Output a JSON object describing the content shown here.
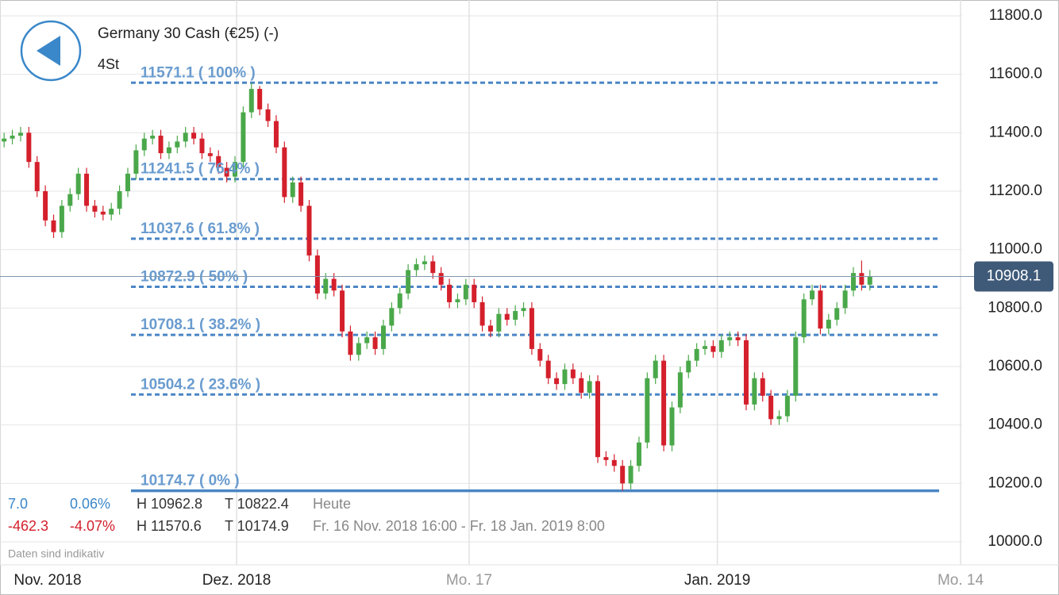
{
  "chart_data": {
    "type": "candlestick",
    "title": "Germany 30 Cash (€25) (-)",
    "subtitle": "4St",
    "up_color": "#4aa84a",
    "down_color": "#d4202c",
    "fib_color": "#4a86c5",
    "grid": true,
    "x": [
      0,
      1,
      2,
      3,
      4,
      5,
      6,
      7,
      8,
      9,
      10,
      11,
      12,
      13,
      14,
      15,
      16,
      17,
      18,
      19,
      20,
      21,
      22,
      23,
      24,
      25,
      26,
      27,
      28,
      29,
      30,
      31,
      32,
      33,
      34,
      35,
      36,
      37,
      38,
      39,
      40,
      41,
      42,
      43,
      44,
      45,
      46,
      47,
      48,
      49,
      50,
      51,
      52,
      53,
      54,
      55,
      56,
      57,
      58,
      59,
      60,
      61,
      62,
      63,
      64,
      65,
      66,
      67,
      68,
      69,
      70,
      71,
      72,
      73,
      74,
      75,
      76,
      77,
      78,
      79,
      80,
      81,
      82,
      83,
      84,
      85,
      86,
      87,
      88,
      89,
      90,
      91,
      92,
      93,
      94,
      95,
      96,
      97,
      98,
      99,
      100,
      101,
      102,
      103,
      104,
      105
    ],
    "open": [
      11370,
      11380,
      11390,
      11400,
      11300,
      11200,
      11100,
      11060,
      11150,
      11190,
      11260,
      11150,
      11130,
      11120,
      11140,
      11200,
      11260,
      11340,
      11380,
      11390,
      11330,
      11350,
      11370,
      11400,
      11380,
      11330,
      11320,
      11280,
      11250,
      11300,
      11470,
      11550,
      11480,
      11440,
      11350,
      11180,
      11230,
      11150,
      10980,
      10850,
      10900,
      10860,
      10720,
      10640,
      10680,
      10700,
      10660,
      10740,
      10800,
      10850,
      10930,
      10950,
      10960,
      10920,
      10880,
      10820,
      10830,
      10880,
      10820,
      10740,
      10720,
      10780,
      10760,
      10790,
      10800,
      10660,
      10620,
      10560,
      10540,
      10590,
      10560,
      10510,
      10550,
      10290,
      10280,
      10260,
      10200,
      10260,
      10340,
      10560,
      10620,
      10330,
      10460,
      10580,
      10620,
      10660,
      10670,
      10650,
      10690,
      10700,
      10690,
      10470,
      10560,
      10500,
      10420,
      10430,
      10500,
      10700,
      10830,
      10860,
      10730,
      10760,
      10800,
      10860,
      10920,
      10880
    ],
    "high": [
      11400,
      11410,
      11420,
      11420,
      11320,
      11220,
      11120,
      11170,
      11210,
      11280,
      11280,
      11170,
      11150,
      11160,
      11220,
      11280,
      11360,
      11400,
      11410,
      11410,
      11370,
      11390,
      11420,
      11420,
      11400,
      11350,
      11340,
      11300,
      11320,
      11490,
      11570.6,
      11560,
      11500,
      11460,
      11370,
      11250,
      11250,
      11170,
      11000,
      10920,
      10920,
      10880,
      10740,
      10700,
      10720,
      10720,
      10760,
      10820,
      10870,
      10950,
      10970,
      10980,
      10980,
      10940,
      10900,
      10850,
      10900,
      10900,
      10840,
      10760,
      10800,
      10800,
      10810,
      10820,
      10820,
      10680,
      10640,
      10580,
      10610,
      10610,
      10580,
      10570,
      10570,
      10310,
      10300,
      10280,
      10280,
      10360,
      10580,
      10640,
      10640,
      10480,
      10600,
      10640,
      10680,
      10690,
      10690,
      10710,
      10720,
      10720,
      10710,
      10580,
      10580,
      10520,
      10450,
      10520,
      10720,
      10850,
      10880,
      10880,
      10780,
      10820,
      10880,
      10940,
      10962.8,
      10930
    ],
    "low": [
      11350,
      11360,
      11370,
      11280,
      11180,
      11080,
      11040,
      11040,
      11130,
      11170,
      11130,
      11110,
      11100,
      11100,
      11120,
      11180,
      11240,
      11320,
      11360,
      11310,
      11310,
      11330,
      11350,
      11360,
      11310,
      11300,
      11260,
      11230,
      11230,
      11280,
      11450,
      11460,
      11420,
      11330,
      11160,
      11160,
      11130,
      10960,
      10830,
      10830,
      10840,
      10700,
      10620,
      10620,
      10660,
      10640,
      10640,
      10720,
      10780,
      10830,
      10910,
      10930,
      10900,
      10860,
      10800,
      10800,
      10810,
      10800,
      10720,
      10700,
      10700,
      10740,
      10740,
      10770,
      10640,
      10600,
      10540,
      10520,
      10520,
      10540,
      10490,
      10490,
      10270,
      10260,
      10240,
      10174.9,
      10180,
      10240,
      10320,
      10540,
      10310,
      10310,
      10440,
      10560,
      10600,
      10640,
      10630,
      10630,
      10670,
      10670,
      10450,
      10450,
      10480,
      10400,
      10400,
      10410,
      10480,
      10680,
      10810,
      10710,
      10710,
      10740,
      10780,
      10840,
      10860,
      10860
    ],
    "close": [
      11380,
      11390,
      11400,
      11300,
      11200,
      11100,
      11060,
      11150,
      11190,
      11260,
      11150,
      11130,
      11120,
      11140,
      11200,
      11260,
      11340,
      11380,
      11390,
      11330,
      11350,
      11370,
      11400,
      11380,
      11330,
      11320,
      11280,
      11250,
      11300,
      11470,
      11550,
      11480,
      11440,
      11350,
      11180,
      11230,
      11150,
      10980,
      10850,
      10900,
      10860,
      10720,
      10640,
      10680,
      10700,
      10660,
      10740,
      10800,
      10850,
      10930,
      10950,
      10960,
      10920,
      10880,
      10820,
      10830,
      10880,
      10820,
      10740,
      10720,
      10780,
      10760,
      10790,
      10800,
      10660,
      10620,
      10560,
      10540,
      10590,
      10560,
      10510,
      10550,
      10290,
      10280,
      10260,
      10200,
      10260,
      10340,
      10560,
      10620,
      10330,
      10460,
      10580,
      10620,
      10660,
      10670,
      10650,
      10690,
      10700,
      10690,
      10470,
      10560,
      10500,
      10420,
      10430,
      10500,
      10700,
      10830,
      10860,
      10730,
      10760,
      10800,
      10860,
      10920,
      10880,
      10908.1
    ],
    "xlim": [
      -0.5,
      116
    ],
    "xticks": [
      {
        "value": -0.5,
        "label": "Nov. 2018"
      },
      {
        "value": 28.2,
        "label": "Dez. 2018"
      },
      {
        "value": 56.4,
        "label": "Mo. 17"
      },
      {
        "value": 86.5,
        "label": "Jan. 2019"
      },
      {
        "value": 116,
        "label": "Mo. 14"
      }
    ],
    "ylim": [
      10000,
      11800
    ],
    "yticks": [
      {
        "value": 10000,
        "label": "10000.0"
      },
      {
        "value": 10200,
        "label": "10200.0"
      },
      {
        "value": 10400,
        "label": "10400.0"
      },
      {
        "value": 10600,
        "label": "10600.0"
      },
      {
        "value": 10800,
        "label": "10800.0"
      },
      {
        "value": 11000,
        "label": "11000.0"
      },
      {
        "value": 11200,
        "label": "11200.0"
      },
      {
        "value": 11400,
        "label": "11400.0"
      },
      {
        "value": 11600,
        "label": "11600.0"
      },
      {
        "value": 11800,
        "label": "11800.0"
      }
    ],
    "current_price": 10908.1,
    "fib_levels": [
      {
        "value": 11571.1,
        "label": "11571.1 ( 100% )"
      },
      {
        "value": 11241.5,
        "label": "11241.5 ( 76.4% )"
      },
      {
        "value": 11037.6,
        "label": "11037.6 ( 61.8% )"
      },
      {
        "value": 10872.9,
        "label": "10872.9 ( 50% )"
      },
      {
        "value": 10708.1,
        "label": "10708.1 ( 38.2% )"
      },
      {
        "value": 10504.2,
        "label": "10504.2 ( 23.6% )"
      },
      {
        "value": 10174.7,
        "label": "10174.7 ( 0% )"
      }
    ]
  },
  "info": {
    "rows": [
      [
        "7.0",
        "0.06%",
        "H 10962.8",
        "T 10822.4",
        "Heute"
      ],
      [
        "-462.3",
        "-4.07%",
        "H 11570.6",
        "T 10174.9",
        "Fr. 16 Nov. 2018 16:00 - Fr. 18 Jan. 2019 8:00"
      ]
    ],
    "note": "Daten sind indikativ"
  }
}
